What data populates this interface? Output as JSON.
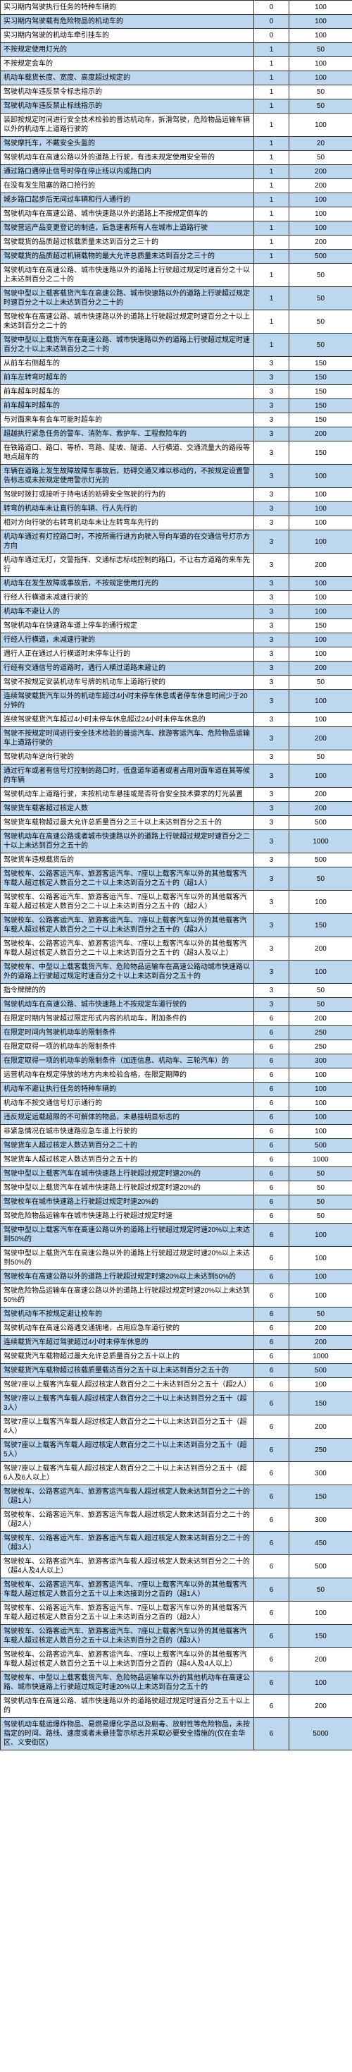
{
  "rows": [
    {
      "hl": 0,
      "desc": "实习期内驾驶执行任务的特种车辆的",
      "pt": "0",
      "fine": "100"
    },
    {
      "hl": 1,
      "desc": "实习期内驾驶载有危险物品的机动车的",
      "pt": "0",
      "fine": "100"
    },
    {
      "hl": 0,
      "desc": "实习期内驾驶的机动车牵引挂车的",
      "pt": "0",
      "fine": "100"
    },
    {
      "hl": 1,
      "desc": "不按规定使用灯光的",
      "pt": "1",
      "fine": "50"
    },
    {
      "hl": 0,
      "desc": "不按规定会车的",
      "pt": "1",
      "fine": "100"
    },
    {
      "hl": 1,
      "desc": "机动车载货长度、宽度、高度超过规定的",
      "pt": "1",
      "fine": "100"
    },
    {
      "hl": 0,
      "desc": "驾驶机动车违反禁令标志指示的",
      "pt": "1",
      "fine": "50"
    },
    {
      "hl": 1,
      "desc": "驾驶机动车违反禁止标线指示的",
      "pt": "1",
      "fine": "50"
    },
    {
      "hl": 0,
      "desc": "装卸按规定时间进行安全技术检验的普达机动车，拆滑驾驶，危险物品运输车辆以外的机动车上道路行驶的",
      "pt": "1",
      "fine": "100"
    },
    {
      "hl": 1,
      "desc": "驾驶摩托车，不戴安全头盔的",
      "pt": "1",
      "fine": "20"
    },
    {
      "hl": 0,
      "desc": "驾驶机动车在高速公路以外的道路上行驶，有违未规定使用安全带的",
      "pt": "1",
      "fine": "50"
    },
    {
      "hl": 1,
      "desc": "通过路口遇停止信号时停在停止线以内或路口内",
      "pt": "1",
      "fine": "200"
    },
    {
      "hl": 0,
      "desc": "在没有发生阻塞的路口抢行的",
      "pt": "1",
      "fine": "200"
    },
    {
      "hl": 1,
      "desc": "城乡路口起步后无间过车辆和行人通行的",
      "pt": "1",
      "fine": "100"
    },
    {
      "hl": 0,
      "desc": "驾驶机动车在高速公路、城市快速路以外的道路上不按规定倒车的",
      "pt": "1",
      "fine": "100"
    },
    {
      "hl": 1,
      "desc": "驾驶营运产品变更登记的制造，后急速者所有人在城市上道路行驶",
      "pt": "1",
      "fine": "100"
    },
    {
      "hl": 0,
      "desc": "驾驶载货的品质超过核载质量未达到百分之三十的",
      "pt": "1",
      "fine": "200"
    },
    {
      "hl": 1,
      "desc": "驾驶载货的品质超过机辆载物的最大允许总质量未达到百分之三十的",
      "pt": "1",
      "fine": "500"
    },
    {
      "hl": 0,
      "desc": "驾驶机动车在高速公路、城市快速路以外的道路上行驶超过规定时速百分之十以上未达到百分之二十的",
      "pt": "1",
      "fine": "50"
    },
    {
      "hl": 1,
      "desc": "驾驶中型以上载客载货汽车在高速公路、城市快速路以外的道路上行驶超过规定时速百分之十以上未达到百分之二十的",
      "pt": "1",
      "fine": "50"
    },
    {
      "hl": 0,
      "desc": "驾驶校车在高速公路、城市快速路以外的道路上行驶超过规定时速百分之十以上未达到百分之二十的",
      "pt": "1",
      "fine": "50"
    },
    {
      "hl": 1,
      "desc": "驾驶中型以上载货汽车在高速公路、城市快速路以外的道路上行驶超过规定时速百分之十以上未达到百分之二十的",
      "pt": "1",
      "fine": "50"
    },
    {
      "hl": 0,
      "desc": "从前车右侧超车的",
      "pt": "3",
      "fine": "150"
    },
    {
      "hl": 1,
      "desc": "前车左转弯时超车的",
      "pt": "3",
      "fine": "150"
    },
    {
      "hl": 0,
      "desc": "前车超车时超车的",
      "pt": "3",
      "fine": "150"
    },
    {
      "hl": 1,
      "desc": "前车超车时超车的",
      "pt": "3",
      "fine": "150"
    },
    {
      "hl": 0,
      "desc": "与对面来车有会车可能时超车的",
      "pt": "3",
      "fine": "150"
    },
    {
      "hl": 1,
      "desc": "超越执行紧急任务的警车、消防车、救护车、工程救险车的",
      "pt": "3",
      "fine": "200"
    },
    {
      "hl": 0,
      "desc": "在铁路道口、路口、等桥、弯路、陡坡、隧道、人行横道、交通流量大的路段等地点超车的",
      "pt": "3",
      "fine": "150"
    },
    {
      "hl": 1,
      "desc": "车辆在道路上发生故障故障车事故后，妨碍交通又难以移动的，不按规定设置警告标志或未按规定使用警示灯光的",
      "pt": "3",
      "fine": "100"
    },
    {
      "hl": 0,
      "desc": "驾驶时拨打或接听于持电话的妨碍安全驾驶的行为的",
      "pt": "3",
      "fine": "100"
    },
    {
      "hl": 1,
      "desc": "转弯的机动车未让直行的车辆、行人先行的",
      "pt": "3",
      "fine": "100"
    },
    {
      "hl": 0,
      "desc": "相对方向行驶的右转弯机动车未让左转弯车先行的",
      "pt": "3",
      "fine": "100"
    },
    {
      "hl": 1,
      "desc": "机动车通过有灯控路口时，不按所需行进方向驶入导向车道的在交通信号灯示方方向",
      "pt": "3",
      "fine": "100"
    },
    {
      "hl": 0,
      "desc": "机动车通过无灯，交警指挥、交通标志标线控制的路口，不让右方道路的来车先行",
      "pt": "3",
      "fine": "200"
    },
    {
      "hl": 1,
      "desc": "机动车在发生故障或事故后，不按规定使用灯光的",
      "pt": "3",
      "fine": "100"
    },
    {
      "hl": 0,
      "desc": "行经人行横道未减速行驶的",
      "pt": "3",
      "fine": "100"
    },
    {
      "hl": 1,
      "desc": "机动车不避让人的",
      "pt": "3",
      "fine": "100"
    },
    {
      "hl": 0,
      "desc": "驾驶机动车在快速路车道上停车的通行规定",
      "pt": "3",
      "fine": "150"
    },
    {
      "hl": 1,
      "desc": "行经人行横道，未减速行驶的",
      "pt": "3",
      "fine": "100"
    },
    {
      "hl": 0,
      "desc": "遇行人正在通过人行横道时未停车让行的",
      "pt": "3",
      "fine": "100"
    },
    {
      "hl": 1,
      "desc": "行经有交通信号的道路时，遇行人横过道路未避让的",
      "pt": "3",
      "fine": "200"
    },
    {
      "hl": 0,
      "desc": "驾驶不按规定安装机动车号牌的机动车上道路行驶的",
      "pt": "3",
      "fine": "50"
    },
    {
      "hl": 1,
      "desc": "连续驾驶载货汽车以外的机动车超过4小时未停车休息或者停车休息时间少于20分钟的",
      "pt": "3",
      "fine": "100"
    },
    {
      "hl": 0,
      "desc": "连续驾驶载货汽车超过4小时未停车休息超过24小时未停车休息的",
      "pt": "3",
      "fine": "100"
    },
    {
      "hl": 1,
      "desc": "驾驶不按规定时间进行安全技术检验的普运汽车、旅游客运汽车、危险物品运输车上道路行驶的",
      "pt": "3",
      "fine": "200"
    },
    {
      "hl": 0,
      "desc": "驾驶机动车逆向行驶的",
      "pt": "3",
      "fine": "50"
    },
    {
      "hl": 1,
      "desc": "通过行车或者有信号灯控制的路口时，低盘道车道者或者占用对面车道在其等候的车辆",
      "pt": "3",
      "fine": "100"
    },
    {
      "hl": 0,
      "desc": "驾驶机动车上道路行驶，未按机动车悬挂或是否符合安全技术要求的灯光装置",
      "pt": "3",
      "fine": "200"
    },
    {
      "hl": 1,
      "desc": "驾驶货车载客超过核定人数",
      "pt": "3",
      "fine": "200"
    },
    {
      "hl": 0,
      "desc": "驾驶货车载物超过最大允许总质量百分之三十以上未达到百分之五十的",
      "pt": "3",
      "fine": "500"
    },
    {
      "hl": 1,
      "desc": "驾驶机动车在高速公路或者城市快速路以外的道路上行驶超过规定时速百分之二十以上未达到百分之五十的",
      "pt": "3",
      "fine": "1000"
    },
    {
      "hl": 0,
      "desc": "驾驶货车违规载货后的",
      "pt": "3",
      "fine": "500"
    },
    {
      "hl": 1,
      "desc": "驾驶校车、公路客运汽车、旅游客运汽车、7座以上载客汽车以外的其他载客汽车载人超过核定人数百分之二十以上未达到百分之五十的（超1人）",
      "pt": "3",
      "fine": "50"
    },
    {
      "hl": 0,
      "desc": "驾驶校车、公路客运汽车、旅游客运汽车、7座以上载客汽车以外的其他载客汽车载人超过核定人数百分之二十以上未达到百分之五十的（超2人）",
      "pt": "3",
      "fine": "100"
    },
    {
      "hl": 1,
      "desc": "驾驶校车、公路客运汽车、旅游客运汽车、7座以上载客汽车以外的其他载客汽车载人超过核定人数百分之二十以上未达到百分之五十的（超3人）",
      "pt": "3",
      "fine": "150"
    },
    {
      "hl": 0,
      "desc": "驾驶校车、公路客运汽车、旅游客运汽车、7座以上载客汽车以外的其他载客汽车载人超过核定人数百分之二十以上未达到百分之五十的（超3人及以上）",
      "pt": "3",
      "fine": "200"
    },
    {
      "hl": 1,
      "desc": "驾驶校车、中型以上载客载货汽车、危险物品运输车在高速公路动城市快速路以外的道路上行驶超过规定时速百分之十以上未达到百分之五十的",
      "pt": "3",
      "fine": "100"
    },
    {
      "hl": 0,
      "desc": "指令牌牌的的",
      "pt": "3",
      "fine": "50"
    },
    {
      "hl": 1,
      "desc": "驾驶机动车在高速公路、城市快速路上不按规定车道行驶的",
      "pt": "3",
      "fine": "50"
    },
    {
      "hl": 0,
      "desc": "在限定时期内驾驶超过限定形式内容的机动车，附加条件的",
      "pt": "6",
      "fine": "200"
    },
    {
      "hl": 1,
      "desc": "在限定时间内驾驶机动车的限制条件",
      "pt": "6",
      "fine": "250"
    },
    {
      "hl": 0,
      "desc": "在限定取得一项的机动车的限制条件",
      "pt": "6",
      "fine": "250"
    },
    {
      "hl": 1,
      "desc": "在限定取得一项的机动车的限制条件（加连信息、机动车、三轮汽车）的",
      "pt": "6",
      "fine": "300"
    },
    {
      "hl": 0,
      "desc": "运营机动车在规定停放的地方内未检验合格，在限定期障的",
      "pt": "6",
      "fine": "100"
    },
    {
      "hl": 1,
      "desc": "机动车不避让执行任务的特种车辆的",
      "pt": "6",
      "fine": "100"
    },
    {
      "hl": 0,
      "desc": "机动车不按交通信号灯示通行的",
      "pt": "6",
      "fine": "100"
    },
    {
      "hl": 1,
      "desc": "违反规定运载超限的不可解体的物品，未悬挂明显标志的",
      "pt": "6",
      "fine": "100"
    },
    {
      "hl": 0,
      "desc": "非紧急情况在城市快速路应急车道上行驶的",
      "pt": "6",
      "fine": "100"
    },
    {
      "hl": 1,
      "desc": "驾驶货车人超过核定人数达到百分之二十的",
      "pt": "6",
      "fine": "500"
    },
    {
      "hl": 0,
      "desc": "驾驶货车人超过核定人数达到百分之五十的",
      "pt": "6",
      "fine": "1000"
    },
    {
      "hl": 1,
      "desc": "驾驶中型以上载客汽车在城市快速路上行驶超过规定时速20%的",
      "pt": "6",
      "fine": "50"
    },
    {
      "hl": 0,
      "desc": "驾驶中型以上载货汽车在城市快速路上行驶超过规定时速20%的",
      "pt": "6",
      "fine": "50"
    },
    {
      "hl": 1,
      "desc": "驾驶校车在城市快速路上行驶超过规定时速20%的",
      "pt": "6",
      "fine": "50"
    },
    {
      "hl": 0,
      "desc": "驾驶危险物品运输车在城市快速路上行驶超过规定时速",
      "pt": "6",
      "fine": "50"
    },
    {
      "hl": 1,
      "desc": "驾驶中型以上载客汽车在高速公路以外的道路上行驶超过规定时速20%以上未达到50%的",
      "pt": "6",
      "fine": "100"
    },
    {
      "hl": 0,
      "desc": "驾驶中型以上载货汽车在高速公路以外的道路上行驶超过规定时速20%以上未达到50%的",
      "pt": "6",
      "fine": "100"
    },
    {
      "hl": 1,
      "desc": "驾驶校车在高速公路以外的道路上行驶超过规定时速20%以上未达到50%的",
      "pt": "6",
      "fine": "100"
    },
    {
      "hl": 0,
      "desc": "驾驶危险物品运输车在高速公路以外的道路上行驶超过规定时速20%以上未达到50%的",
      "pt": "6",
      "fine": "100"
    },
    {
      "hl": 1,
      "desc": "驾驶机动车不按规定避让校车的",
      "pt": "6",
      "fine": "50"
    },
    {
      "hl": 0,
      "desc": "驾驶机动车在高速公路遇交通拥堵，占用应急车道行驶的",
      "pt": "6",
      "fine": "200"
    },
    {
      "hl": 1,
      "desc": "连续载货汽车超过驾驶超过4小时未停车休息的",
      "pt": "6",
      "fine": "200"
    },
    {
      "hl": 0,
      "desc": "驾驶载货汽车载物超过最大允许总质量百分之五十以上的",
      "pt": "6",
      "fine": "1000"
    },
    {
      "hl": 1,
      "desc": "驾驶载货汽车载物超过核载质量载达百分之五十以上未达到百分之五十的",
      "pt": "6",
      "fine": "500"
    },
    {
      "hl": 0,
      "desc": "驾驶7座以上载客汽车载人超过核定人数百分之二十未达到百分之五十（超2人）",
      "pt": "6",
      "fine": "100"
    },
    {
      "hl": 1,
      "desc": "驾驶7座以上载客汽车载人超过核定人数百分之二十以上未达到百分之五十（超3人）",
      "pt": "6",
      "fine": "150"
    },
    {
      "hl": 0,
      "desc": "驾驶7座以上载客汽车载人超过核定人数百分之二十以上未达到百分之五十（超4人）",
      "pt": "6",
      "fine": "200"
    },
    {
      "hl": 1,
      "desc": "驾驶7座以上载客汽车载人超过核定人数百分之二十以上未达到百分之五十（超5人）",
      "pt": "6",
      "fine": "250"
    },
    {
      "hl": 0,
      "desc": "驾驶7座以上载客汽车载人超过核定人数百分之二十以上未达到百分之五十（超6人及6人以上）",
      "pt": "6",
      "fine": "300"
    },
    {
      "hl": 1,
      "desc": "驾驶校车、公路客运汽车、旅游客运汽车载人超过核定人数未达到百分之二十的（超1人）",
      "pt": "6",
      "fine": "150"
    },
    {
      "hl": 0,
      "desc": "驾驶校车、公路客运汽车、旅游客运汽车载人超过核定人数未达到百分之二十的（超2人）",
      "pt": "6",
      "fine": "300"
    },
    {
      "hl": 1,
      "desc": "驾驶校车、公路客运汽车、旅游客运汽车载人超过核定人数未达到百分之二十的（超3人）",
      "pt": "6",
      "fine": "450"
    },
    {
      "hl": 0,
      "desc": "驾驶校车、公路客运汽车、旅游客运汽车载人超过核定人数未达到百分之二十的（超4人及4人以上）",
      "pt": "6",
      "fine": "500"
    },
    {
      "hl": 1,
      "desc": "驾驶校车、公路客运汽车、旅游客运汽车、7座以上载客汽车以外的其他载客汽车载人超过核定人数百分之五十以上未达接到分之百的（超1人）",
      "pt": "6",
      "fine": "50"
    },
    {
      "hl": 0,
      "desc": "驾驶校车、公路客运汽车、旅游客运汽车、7座以上载客汽车以外的其他载客汽车载人超过核定人数百分之五十以上未达到百分之百的（超2人）",
      "pt": "6",
      "fine": "100"
    },
    {
      "hl": 1,
      "desc": "驾驶校车、公路客运汽车、旅游客运汽车、7座以上载客汽车以外的其他载客汽车载人超过核定人数百分之五十以上未达到百分之百的（超3人）",
      "pt": "6",
      "fine": "150"
    },
    {
      "hl": 0,
      "desc": "驾驶校车、公路客运汽车、旅游客运汽车、7座以上载客汽车以外的其他载客汽车载人超过核定人数百分之五十以上未达到百分之百的（超4人及4人以上）",
      "pt": "6",
      "fine": "200"
    },
    {
      "hl": 1,
      "desc": "驾驶校车、中型以上载客载货汽车、危险物品运输车以外的其他机动车在高速公路、城市快速路上行驶超过规定时速20%以上未达到百分之五十的",
      "pt": "6",
      "fine": "100"
    },
    {
      "hl": 0,
      "desc": "驾驶机动车在高速公路、城市快速路以外的道路驶超过规定时速百分之五十以上的",
      "pt": "6",
      "fine": "200"
    },
    {
      "hl": 1,
      "desc": "驾驶机动车载运爆炸物品、易燃易爆化学品以及剧毒、放射性等危险物品，未按指定的时间、路线、速度或者未悬挂警示标志并采取必要安全措施的(仅在金华区、义安街区)",
      "pt": "6",
      "fine": "5000"
    }
  ]
}
